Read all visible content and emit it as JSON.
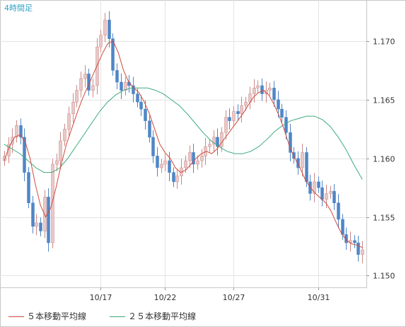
{
  "chart_data": {
    "type": "candlestick",
    "timeframe_label": "4時間足",
    "ylim": [
      1.149,
      1.1735
    ],
    "y_ticks": [
      "1.170",
      "1.165",
      "1.160",
      "1.155",
      "1.150"
    ],
    "x_ticks": [
      "10/17",
      "10/22",
      "10/27",
      "10/31"
    ],
    "x_tick_candle_index": [
      24,
      40,
      57,
      78
    ],
    "grid": true,
    "legend_position": "bottom",
    "colors": {
      "up": "#e8c8c8",
      "down": "#4f86c6",
      "ma5": "#d04a3a",
      "ma25": "#3caa7c"
    },
    "series": [
      {
        "name": "５本移動平均線",
        "color": "#d04a3a"
      },
      {
        "name": "２５本移動平均線",
        "color": "#3caa7c"
      }
    ],
    "closes": [
      1.1602,
      1.1612,
      1.1618,
      1.1628,
      1.1618,
      1.1588,
      1.1562,
      1.1542,
      1.1545,
      1.1538,
      1.1567,
      1.1528,
      1.1595,
      1.1598,
      1.1615,
      1.1625,
      1.1638,
      1.1648,
      1.1658,
      1.1668,
      1.1672,
      1.1658,
      1.1662,
      1.1695,
      1.1705,
      1.1718,
      1.1702,
      1.1675,
      1.1665,
      1.1658,
      1.1665,
      1.1662,
      1.1655,
      1.1648,
      1.1642,
      1.1632,
      1.1618,
      1.1602,
      1.1592,
      1.1595,
      1.1598,
      1.1588,
      1.158,
      1.1585,
      1.1592,
      1.1598,
      1.1605,
      1.1595,
      1.1598,
      1.1602,
      1.161,
      1.1612,
      1.1618,
      1.161,
      1.1622,
      1.1635,
      1.1632,
      1.164,
      1.1638,
      1.1645,
      1.1648,
      1.1655,
      1.166,
      1.1662,
      1.1655,
      1.1658,
      1.166,
      1.165,
      1.1642,
      1.1635,
      1.1622,
      1.1605,
      1.16,
      1.1592,
      1.1605,
      1.158,
      1.157,
      1.158,
      1.1575,
      1.1565,
      1.157,
      1.1572,
      1.1562,
      1.1548,
      1.1535,
      1.1528,
      1.153,
      1.1528,
      1.1518,
      1.1522
    ],
    "ma5": [
      1.1598,
      1.161,
      1.1618,
      1.162,
      1.1615,
      1.16,
      1.1578,
      1.156,
      1.155,
      1.1558,
      1.1575,
      1.1595,
      1.1612,
      1.1625,
      1.1638,
      1.165,
      1.166,
      1.167,
      1.168,
      1.169,
      1.1698,
      1.17,
      1.169,
      1.1675,
      1.1665,
      1.166,
      1.1656,
      1.1648,
      1.1638,
      1.1625,
      1.1612,
      1.1605,
      1.16,
      1.1592,
      1.1588,
      1.159,
      1.1595,
      1.16,
      1.1604,
      1.1606,
      1.1604,
      1.1608,
      1.1614,
      1.162,
      1.1626,
      1.1632,
      1.1638,
      1.1645,
      1.1652,
      1.1656,
      1.1658,
      1.1654,
      1.1646,
      1.1636,
      1.1624,
      1.161,
      1.16,
      1.1592,
      1.1582,
      1.1575,
      1.157,
      1.1566,
      1.1562,
      1.1555,
      1.1545,
      1.1536,
      1.153,
      1.1527,
      1.1526,
      1.1524
    ],
    "ma25": [
      1.1612,
      1.1608,
      1.1604,
      1.1598,
      1.1592,
      1.1588,
      1.1588,
      1.1592,
      1.16,
      1.161,
      1.162,
      1.163,
      1.164,
      1.1648,
      1.1654,
      1.1658,
      1.166,
      1.166,
      1.166,
      1.1658,
      1.1655,
      1.165,
      1.1645,
      1.1638,
      1.163,
      1.1622,
      1.1615,
      1.161,
      1.1606,
      1.1604,
      1.1604,
      1.1606,
      1.161,
      1.1616,
      1.1623,
      1.1628,
      1.1632,
      1.1634,
      1.1636,
      1.1636,
      1.1633,
      1.1627,
      1.1618,
      1.1607,
      1.1594,
      1.1582
    ]
  },
  "legend": [
    {
      "label": "５本移動平均線",
      "color": "#d04a3a"
    },
    {
      "label": "２５本移動平均線",
      "color": "#3caa7c"
    }
  ]
}
